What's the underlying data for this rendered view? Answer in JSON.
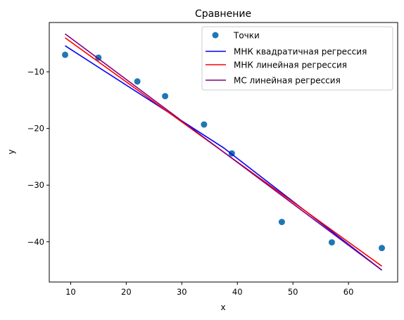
{
  "chart_data": {
    "type": "scatter",
    "title": "Сравнение",
    "xlabel": "x",
    "ylabel": "y",
    "xlim": [
      6.15,
      68.85
    ],
    "ylim": [
      -47.1,
      -1.3
    ],
    "xticks": [
      10,
      20,
      30,
      40,
      50,
      60
    ],
    "yticks": [
      -10,
      -20,
      -30,
      -40
    ],
    "grid": false,
    "legend_position": "top-right",
    "scatter": {
      "name": "Точки",
      "color": "#1f77b4",
      "x": [
        9,
        15,
        22,
        27,
        34,
        39,
        48,
        57,
        66
      ],
      "y": [
        -7.0,
        -7.5,
        -11.7,
        -14.3,
        -19.3,
        -24.4,
        -36.5,
        -40.1,
        -41.1
      ]
    },
    "series": [
      {
        "name": "МНК квадратичная регрессия",
        "color": "#0000ff",
        "x": [
          9,
          37.5,
          66
        ],
        "y": [
          -5.4,
          -23.4,
          -45.0
        ]
      },
      {
        "name": "МНК линейная регрессия",
        "color": "#ff0000",
        "x": [
          9,
          66
        ],
        "y": [
          -4.0,
          -44.3
        ]
      },
      {
        "name": "МС линейная регрессия",
        "color": "#800080",
        "x": [
          9,
          66
        ],
        "y": [
          -3.3,
          -45.0
        ]
      }
    ]
  }
}
